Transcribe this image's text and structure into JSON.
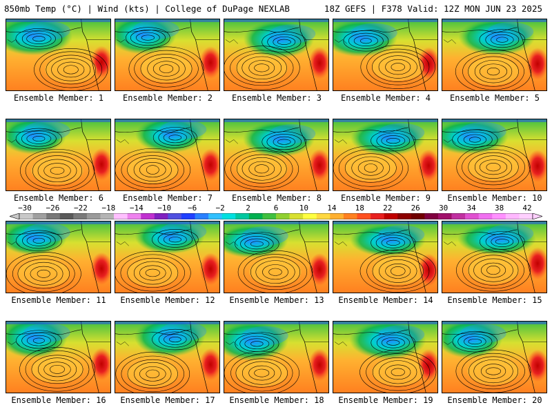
{
  "header": {
    "left": "850mb Temp (°C) | Wind (kts) | College of DuPage NEXLAB",
    "right": "18Z GEFS | F378 Valid: 12Z MON JUN 23 2025"
  },
  "members": [
    {
      "label": "Ensemble Member: 1",
      "high": "center-right",
      "cool": "top-left"
    },
    {
      "label": "Ensemble Member: 2",
      "high": "center",
      "cool": "top-left"
    },
    {
      "label": "Ensemble Member: 3",
      "high": "center-left",
      "cool": "top-center"
    },
    {
      "label": "Ensemble Member: 4",
      "high": "center-right",
      "cool": "top-left"
    },
    {
      "label": "Ensemble Member: 5",
      "high": "center",
      "cool": "top-center"
    },
    {
      "label": "Ensemble Member: 6",
      "high": "center",
      "cool": "top-left"
    },
    {
      "label": "Ensemble Member: 7",
      "high": "center-left",
      "cool": "top-center"
    },
    {
      "label": "Ensemble Member: 8",
      "high": "center-left",
      "cool": "top-center"
    },
    {
      "label": "Ensemble Member: 9",
      "high": "center-left",
      "cool": "top-center"
    },
    {
      "label": "Ensemble Member: 10",
      "high": "center",
      "cool": "top-left"
    },
    {
      "label": "Ensemble Member: 11",
      "high": "center-left",
      "cool": "top-left"
    },
    {
      "label": "Ensemble Member: 12",
      "high": "center-left",
      "cool": "top-center"
    },
    {
      "label": "Ensemble Member: 13",
      "high": "center",
      "cool": "top-left"
    },
    {
      "label": "Ensemble Member: 14",
      "high": "center-right",
      "cool": "top-center"
    },
    {
      "label": "Ensemble Member: 15",
      "high": "center",
      "cool": "top-center"
    },
    {
      "label": "Ensemble Member: 16",
      "high": "center",
      "cool": "top-left"
    },
    {
      "label": "Ensemble Member: 17",
      "high": "center-left",
      "cool": "top-center"
    },
    {
      "label": "Ensemble Member: 18",
      "high": "center-left",
      "cool": "top-left"
    },
    {
      "label": "Ensemble Member: 19",
      "high": "center-right",
      "cool": "top-center"
    },
    {
      "label": "Ensemble Member: 20",
      "high": "center",
      "cool": "top-left"
    }
  ],
  "colorbar": {
    "ticks": [
      "−30",
      "−26",
      "−22",
      "−18",
      "−14",
      "−10",
      "−6",
      "−2",
      "2",
      "6",
      "10",
      "14",
      "18",
      "22",
      "26",
      "30",
      "34",
      "38",
      "42"
    ],
    "colors": [
      "#c8c8c8",
      "#a0a0a0",
      "#787878",
      "#5a5a5a",
      "#7a7a7a",
      "#9a9a9a",
      "#b4b4b4",
      "#ffc0ff",
      "#ee82ee",
      "#c030d0",
      "#8020c0",
      "#5050e0",
      "#2040ff",
      "#2a80ff",
      "#30c0ff",
      "#00e0e0",
      "#00c8a0",
      "#00b050",
      "#40c040",
      "#90d030",
      "#d8e030",
      "#ffff40",
      "#ffd840",
      "#ffb030",
      "#ff8020",
      "#ff5020",
      "#e82020",
      "#c00000",
      "#8c0000",
      "#700000",
      "#800040",
      "#a0106a",
      "#c030a0",
      "#e050d0",
      "#f070f0",
      "#ff90ff",
      "#ffb8ff",
      "#ffd0ff"
    ]
  }
}
